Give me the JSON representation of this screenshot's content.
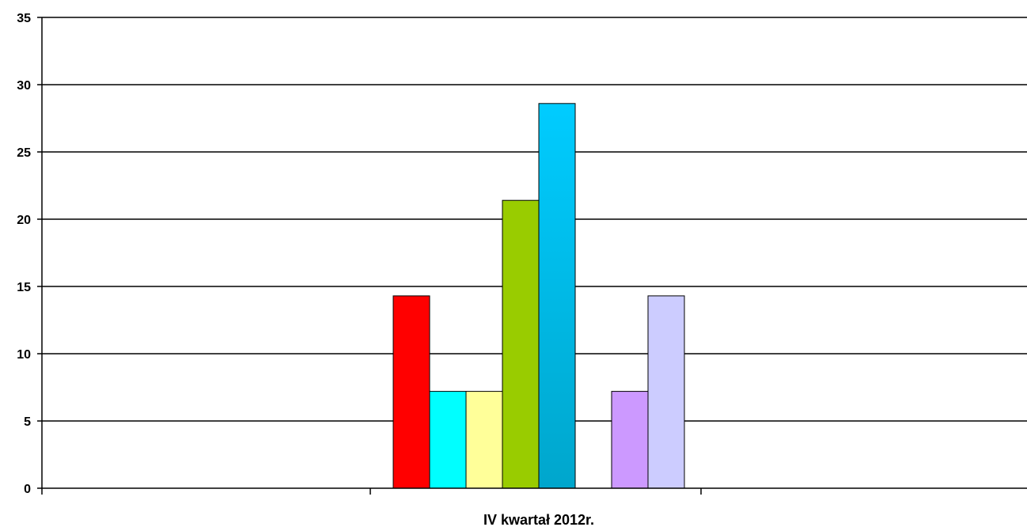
{
  "chart_data": {
    "type": "bar",
    "categories": [
      "IV kwartał 2012r."
    ],
    "series": [
      {
        "color": "#FF0000",
        "values": [
          14.3
        ]
      },
      {
        "color": "#00FFFF",
        "values": [
          7.2
        ]
      },
      {
        "color": "#FFFF99",
        "values": [
          7.2
        ]
      },
      {
        "color": "#99CC00",
        "values": [
          21.4
        ]
      },
      {
        "color": "#00CCFF",
        "gradient_to": "#00A6CC",
        "values": [
          28.6
        ]
      },
      {
        "color": "#FFFFFF",
        "values": [
          0
        ]
      },
      {
        "color": "#CC99FF",
        "values": [
          7.2
        ]
      },
      {
        "color": "#CCCCFF",
        "values": [
          14.3
        ]
      }
    ],
    "yticks": [
      "0",
      "5",
      "10",
      "15",
      "20",
      "25",
      "30",
      "35"
    ],
    "ylim": [
      0,
      35
    ],
    "grid": true,
    "legend": "none"
  }
}
